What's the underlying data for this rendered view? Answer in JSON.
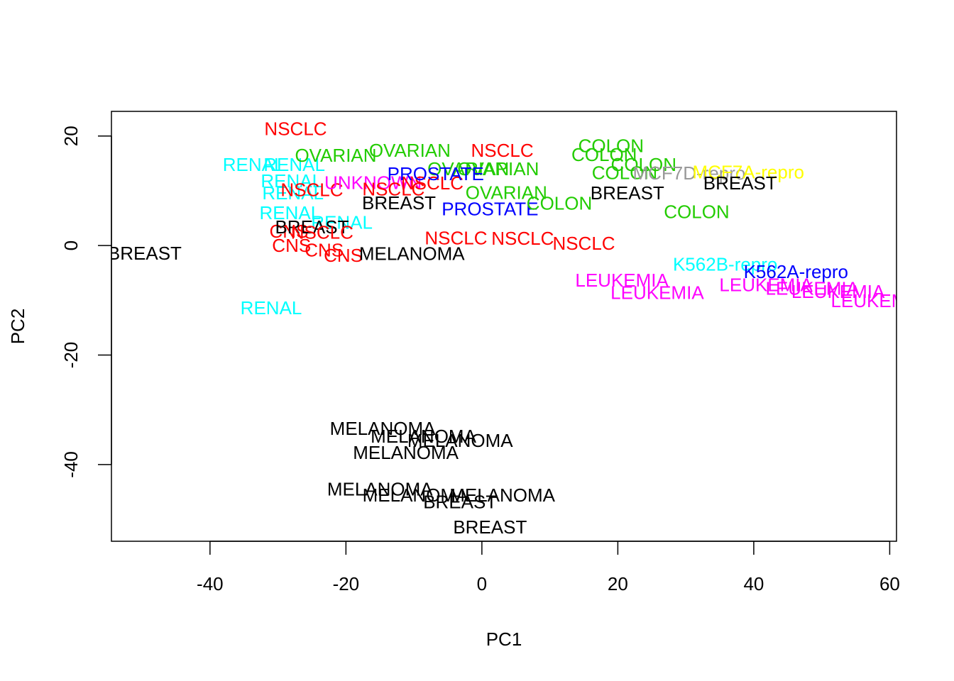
{
  "chart_data": {
    "type": "scatter",
    "title": "",
    "xlabel": "PC1",
    "ylabel": "PC2",
    "xlim": [
      -54.5,
      61
    ],
    "ylim": [
      -54,
      24.5
    ],
    "x_ticks": [
      -40,
      -20,
      0,
      20,
      40,
      60
    ],
    "y_ticks": [
      -40,
      -20,
      0,
      20
    ],
    "x_tick_labels": [
      "-40",
      "-20",
      "0",
      "20",
      "40",
      "60"
    ],
    "y_tick_labels": [
      "-40",
      "-20",
      "0",
      "20"
    ],
    "grid": false,
    "legend": "none",
    "colors": {
      "NSCLC": "#ff0000",
      "CNS": "#ff0000",
      "RENAL": "#00ffff",
      "OVARIAN": "#22cc00",
      "COLON": "#22cc00",
      "UNKNOWN": "#ff00ff",
      "LEUKEMIA": "#ff00ff",
      "PROSTATE": "#0000ff",
      "K562A-repro": "#0000ff",
      "K562B-repro": "#00ffff",
      "MCF7A-repro": "#ffff00",
      "MCF7D-repro": "#999999",
      "BREAST": "#000000",
      "MELANOMA": "#000000"
    },
    "points": [
      {
        "label": "CNS",
        "x": -28.4,
        "y": 2.6
      },
      {
        "label": "CNS",
        "x": -28.0,
        "y": 0.0
      },
      {
        "label": "CNS",
        "x": -20.4,
        "y": -1.8
      },
      {
        "label": "RENAL",
        "x": -20.6,
        "y": 4.2
      },
      {
        "label": "BREAST",
        "x": -25.0,
        "y": 3.4
      },
      {
        "label": "NSCLC",
        "x": -23.5,
        "y": 2.4
      },
      {
        "label": "CNS",
        "x": -23.2,
        "y": -0.8
      },
      {
        "label": "RENAL",
        "x": -28.2,
        "y": 6.0
      },
      {
        "label": "BREAST",
        "x": -49.6,
        "y": -1.4
      },
      {
        "label": "RENAL",
        "x": -33.6,
        "y": 14.8
      },
      {
        "label": "RENAL",
        "x": -27.6,
        "y": 14.8
      },
      {
        "label": "RENAL",
        "x": -28.0,
        "y": 11.8
      },
      {
        "label": "RENAL",
        "x": -27.8,
        "y": 9.6
      },
      {
        "label": "RENAL",
        "x": -31.0,
        "y": -11.4
      },
      {
        "label": "NSCLC",
        "x": -25.0,
        "y": 10.2
      },
      {
        "label": "NSCLC",
        "x": -27.4,
        "y": 21.3
      },
      {
        "label": "UNKNOWN",
        "x": -16.0,
        "y": 11.5
      },
      {
        "label": "OVARIAN",
        "x": -21.5,
        "y": 16.5
      },
      {
        "label": "OVARIAN",
        "x": -10.6,
        "y": 17.4
      },
      {
        "label": "OVARIAN",
        "x": -2.0,
        "y": 14.0
      },
      {
        "label": "OVARIAN",
        "x": 2.4,
        "y": 14.0
      },
      {
        "label": "OVARIAN",
        "x": 3.6,
        "y": 9.7
      },
      {
        "label": "NSCLC",
        "x": -13.0,
        "y": 10.3
      },
      {
        "label": "NSCLC",
        "x": -7.3,
        "y": 11.4
      },
      {
        "label": "NSCLC",
        "x": 3.0,
        "y": 17.4
      },
      {
        "label": "PROSTATE",
        "x": -6.8,
        "y": 13.1
      },
      {
        "label": "PROSTATE",
        "x": 1.2,
        "y": 6.7
      },
      {
        "label": "BREAST",
        "x": -12.2,
        "y": 7.8
      },
      {
        "label": "NSCLC",
        "x": -3.8,
        "y": 1.4
      },
      {
        "label": "NSCLC",
        "x": 6.0,
        "y": 1.3
      },
      {
        "label": "NSCLC",
        "x": 15.0,
        "y": 0.4
      },
      {
        "label": "MELANOMA",
        "x": -10.3,
        "y": -1.5
      },
      {
        "label": "COLON",
        "x": 19.0,
        "y": 18.2
      },
      {
        "label": "COLON",
        "x": 18.0,
        "y": 16.6
      },
      {
        "label": "COLON",
        "x": 23.8,
        "y": 14.8
      },
      {
        "label": "COLON",
        "x": 21.0,
        "y": 13.3
      },
      {
        "label": "COLON",
        "x": 11.4,
        "y": 7.7
      },
      {
        "label": "COLON",
        "x": 31.6,
        "y": 6.2
      },
      {
        "label": "MCF7D-repro",
        "x": 30.5,
        "y": 13.2
      },
      {
        "label": "MCF7A-repro",
        "x": 39.2,
        "y": 13.4
      },
      {
        "label": "BREAST",
        "x": 21.4,
        "y": 9.6
      },
      {
        "label": "BREAST",
        "x": 38.0,
        "y": 11.4
      },
      {
        "label": "K562B-repro",
        "x": 35.8,
        "y": -3.4
      },
      {
        "label": "K562A-repro",
        "x": 46.2,
        "y": -4.8
      },
      {
        "label": "LEUKEMIA",
        "x": 20.6,
        "y": -6.3
      },
      {
        "label": "LEUKEMIA",
        "x": 25.8,
        "y": -8.6
      },
      {
        "label": "LEUKEMIA",
        "x": 41.8,
        "y": -7.2
      },
      {
        "label": "LEUKEMIA",
        "x": 48.6,
        "y": -7.8
      },
      {
        "label": "LEUKEMIA",
        "x": 52.4,
        "y": -8.4
      },
      {
        "label": "LEUKEMIA",
        "x": 58.2,
        "y": -10.1
      },
      {
        "label": "MELANOMA",
        "x": -14.6,
        "y": -33.4
      },
      {
        "label": "MELANOMA",
        "x": -8.6,
        "y": -34.8
      },
      {
        "label": "MELANOMA",
        "x": -3.2,
        "y": -35.6
      },
      {
        "label": "MELANOMA",
        "x": -11.2,
        "y": -37.8
      },
      {
        "label": "MELANOMA",
        "x": -15.0,
        "y": -44.5
      },
      {
        "label": "MELANOMA",
        "x": -9.8,
        "y": -45.6
      },
      {
        "label": "MELANOMA",
        "x": 3.0,
        "y": -45.6
      },
      {
        "label": "BREAST",
        "x": -3.2,
        "y": -46.8
      },
      {
        "label": "BREAST",
        "x": 1.2,
        "y": -51.4
      }
    ]
  }
}
